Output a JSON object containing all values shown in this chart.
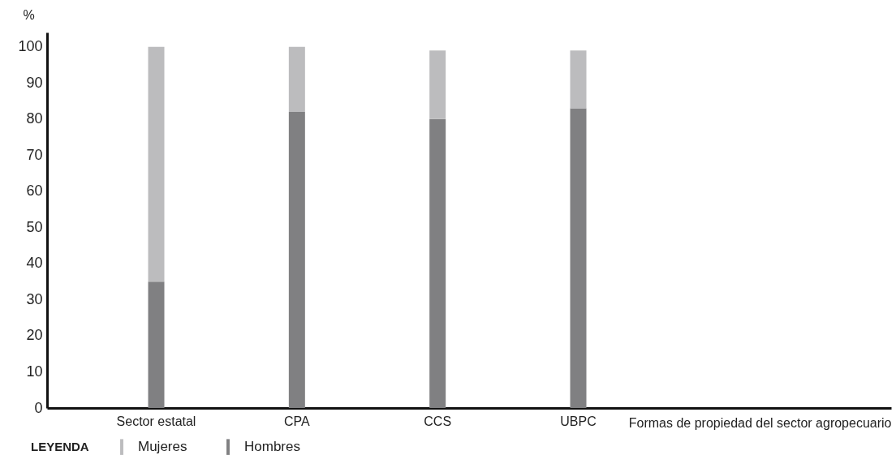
{
  "chart_data": {
    "type": "bar",
    "stacked": true,
    "xlabel": "Formas de propiedad del sector agropecuario",
    "ylabel": "%",
    "legend_title": "LEYENDA",
    "categories": [
      "Sector estatal",
      "CPA",
      "CCS",
      "UBPC"
    ],
    "series": [
      {
        "name": "Hombres",
        "color": "#808082",
        "values": [
          35,
          82,
          80,
          83
        ]
      },
      {
        "name": "Mujeres",
        "color": "#bcbcbe",
        "values": [
          65,
          18,
          19,
          16
        ]
      }
    ],
    "ylim": [
      0,
      104
    ],
    "yticks": [
      0,
      10,
      20,
      30,
      40,
      50,
      60,
      70,
      80,
      90,
      100
    ],
    "grid": false,
    "legend": "bottom left"
  }
}
